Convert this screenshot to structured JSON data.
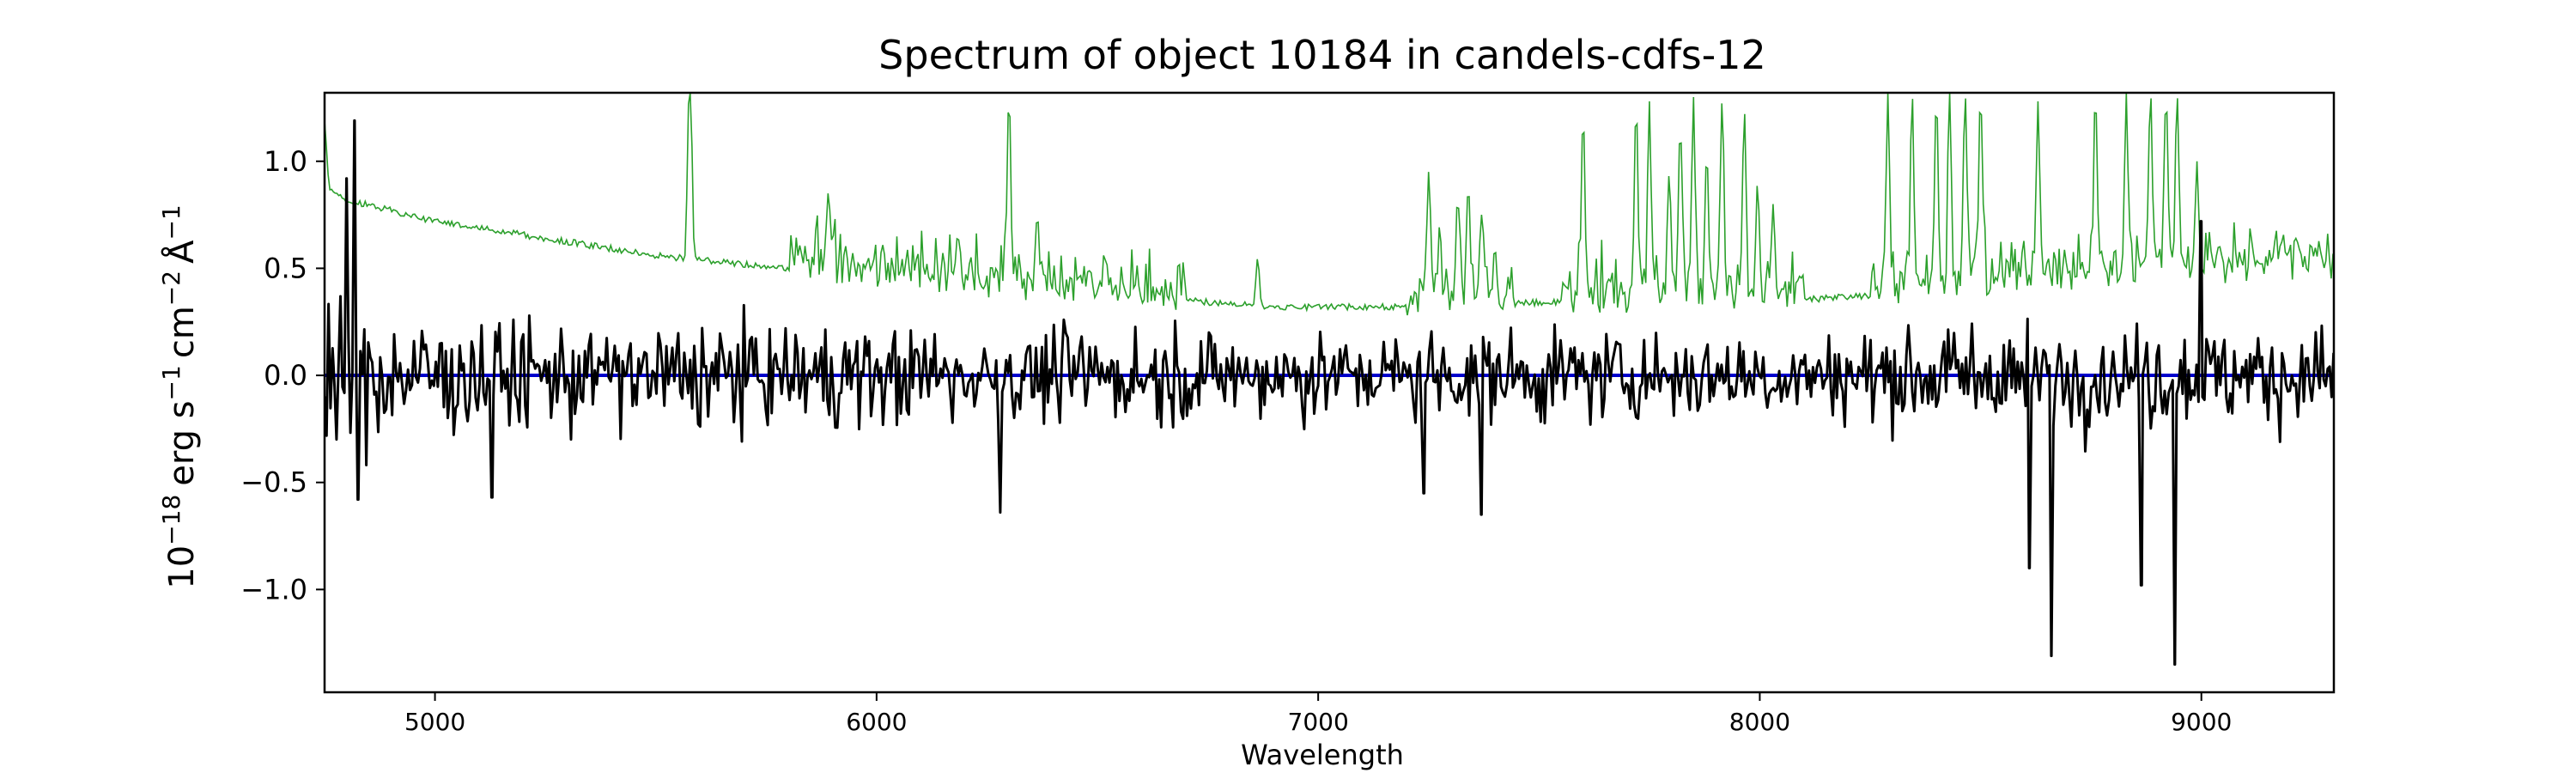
{
  "chart_data": {
    "type": "line",
    "title": "Spectrum of object 10184 in candels-cdfs-12",
    "xlabel": "Wavelength",
    "ylabel": {
      "base": "10",
      "exp": "−18",
      "unit": "erg s",
      "unit_exp1": "−1",
      "unit2": "cm",
      "unit_exp2": "−2",
      "unit3": "Å",
      "unit_exp3": "−1"
    },
    "xlim": [
      4750,
      9300
    ],
    "ylim": [
      -1.48,
      1.32
    ],
    "grid": false,
    "xticks": [
      5000,
      6000,
      7000,
      8000,
      9000
    ],
    "xtick_labels": [
      "5000",
      "6000",
      "7000",
      "8000",
      "9000"
    ],
    "yticks": [
      -1.0,
      -0.5,
      0.0,
      0.5,
      1.0
    ],
    "ytick_labels": [
      "−1.0",
      "−0.5",
      "0.0",
      "0.5",
      "1.0"
    ],
    "colors": {
      "flux": "#000000",
      "error": "#2ca02c",
      "zero": "#0000cc"
    },
    "series": [
      {
        "key": "error",
        "color": "#2ca02c",
        "baseline": [
          [
            4750,
            1.2
          ],
          [
            4760,
            0.88
          ],
          [
            4800,
            0.82
          ],
          [
            5000,
            0.72
          ],
          [
            5500,
            0.56
          ],
          [
            6000,
            0.46
          ],
          [
            6500,
            0.38
          ],
          [
            6900,
            0.32
          ],
          [
            7200,
            0.32
          ],
          [
            7500,
            0.34
          ],
          [
            8000,
            0.34
          ],
          [
            8300,
            0.38
          ],
          [
            8700,
            0.45
          ],
          [
            9000,
            0.48
          ],
          [
            9300,
            0.5
          ]
        ],
        "emission_lines": [
          [
            5577,
            1.32
          ],
          [
            5577,
            1.32
          ],
          [
            5890,
            0.85
          ],
          [
            6300,
            1.32
          ],
          [
            6364,
            0.75
          ],
          [
            6863,
            0.55
          ],
          [
            7250,
            0.95
          ],
          [
            7275,
            0.7
          ],
          [
            7316,
            0.85
          ],
          [
            7340,
            0.9
          ],
          [
            7370,
            0.75
          ],
          [
            7400,
            0.6
          ],
          [
            7600,
            1.22
          ],
          [
            7720,
            1.28
          ],
          [
            7750,
            1.28
          ],
          [
            7795,
            0.95
          ],
          [
            7820,
            1.18
          ],
          [
            7850,
            1.3
          ],
          [
            7880,
            1.05
          ],
          [
            7915,
            1.3
          ],
          [
            7965,
            1.25
          ],
          [
            7995,
            0.9
          ],
          [
            8030,
            0.8
          ],
          [
            8290,
            1.32
          ],
          [
            8345,
            1.32
          ],
          [
            8400,
            1.32
          ],
          [
            8430,
            1.32
          ],
          [
            8465,
            1.32
          ],
          [
            8500,
            1.32
          ],
          [
            8630,
            1.28
          ],
          [
            8760,
            1.32
          ],
          [
            8830,
            1.32
          ],
          [
            8885,
            1.32
          ],
          [
            8920,
            1.32
          ],
          [
            8945,
            1.32
          ],
          [
            8990,
            1.0
          ],
          [
            9040,
            0.62
          ],
          [
            9250,
            0.6
          ]
        ]
      },
      {
        "key": "flux",
        "color": "#000000",
        "notable_points": [
          [
            4800,
            0.92
          ],
          [
            4818,
            1.19
          ],
          [
            4825,
            -0.58
          ],
          [
            5130,
            -0.57
          ],
          [
            6280,
            -0.64
          ],
          [
            7240,
            -0.55
          ],
          [
            7370,
            -0.65
          ],
          [
            8610,
            -0.9
          ],
          [
            8660,
            -1.31
          ],
          [
            8865,
            -0.98
          ],
          [
            8940,
            -1.35
          ],
          [
            9000,
            0.72
          ]
        ],
        "noise_amplitude": 0.22
      },
      {
        "key": "zero",
        "color": "#0000cc",
        "values": [
          [
            4750,
            0.0
          ],
          [
            9300,
            0.0
          ]
        ]
      }
    ]
  }
}
